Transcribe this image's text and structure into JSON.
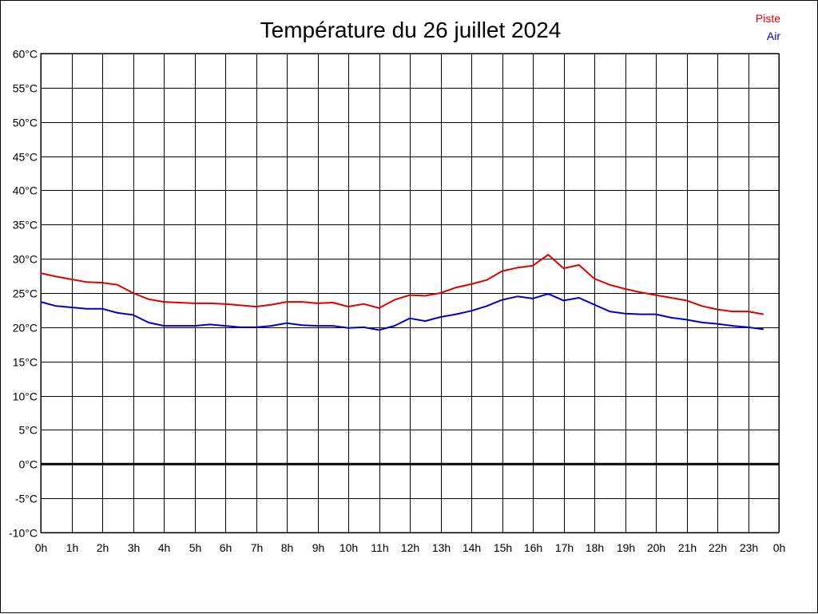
{
  "chart_data": {
    "type": "line",
    "title": "Température du 26 juillet 2024",
    "xlabel": "",
    "ylabel": "",
    "x_tick_labels": [
      "0h",
      "1h",
      "2h",
      "3h",
      "4h",
      "5h",
      "6h",
      "7h",
      "8h",
      "9h",
      "10h",
      "11h",
      "12h",
      "13h",
      "14h",
      "15h",
      "16h",
      "17h",
      "18h",
      "19h",
      "20h",
      "21h",
      "22h",
      "23h",
      "0h"
    ],
    "y_tick_labels": [
      "60°C",
      "55°C",
      "50°C",
      "45°C",
      "40°C",
      "35°C",
      "30°C",
      "25°C",
      "20°C",
      "15°C",
      "10°C",
      "5°C",
      "0°C",
      "-5°C",
      "-10°C"
    ],
    "xlim": [
      0,
      24
    ],
    "ylim": [
      -10,
      60
    ],
    "grid": true,
    "legend_position": "top-right",
    "zero_line": 0,
    "series": [
      {
        "name": "Piste",
        "color": "#dd0000",
        "x": [
          0,
          0.5,
          1,
          1.5,
          2,
          2.5,
          3,
          3.5,
          4,
          4.5,
          5,
          5.5,
          6,
          6.5,
          7,
          7.5,
          8,
          8.5,
          9,
          9.5,
          10,
          10.5,
          11,
          11.5,
          12,
          12.5,
          13,
          13.5,
          14,
          14.5,
          15,
          15.5,
          16,
          16.5,
          17,
          17.5,
          18,
          18.5,
          19,
          19.5,
          20,
          20.5,
          21,
          21.5,
          22,
          22.5,
          23,
          23.5
        ],
        "values": [
          27.9,
          27.4,
          27.0,
          26.6,
          26.5,
          26.2,
          25.0,
          24.1,
          23.7,
          23.6,
          23.5,
          23.5,
          23.4,
          23.2,
          23.0,
          23.3,
          23.7,
          23.7,
          23.5,
          23.6,
          23.0,
          23.4,
          22.8,
          24.0,
          24.7,
          24.6,
          25.0,
          25.8,
          26.3,
          26.9,
          28.2,
          28.7,
          29.0,
          30.6,
          28.6,
          29.1,
          27.1,
          26.2,
          25.6,
          25.1,
          24.7,
          24.3,
          23.9,
          23.1,
          22.6,
          22.3,
          22.3,
          21.9
        ]
      },
      {
        "name": "Air",
        "color": "#0000cc",
        "x": [
          0,
          0.5,
          1,
          1.5,
          2,
          2.5,
          3,
          3.5,
          4,
          4.5,
          5,
          5.5,
          6,
          6.5,
          7,
          7.5,
          8,
          8.5,
          9,
          9.5,
          10,
          10.5,
          11,
          11.5,
          12,
          12.5,
          13,
          13.5,
          14,
          14.5,
          15,
          15.5,
          16,
          16.5,
          17,
          17.5,
          18,
          18.5,
          19,
          19.5,
          20,
          20.5,
          21,
          21.5,
          22,
          22.5,
          23,
          23.5
        ],
        "values": [
          23.7,
          23.1,
          22.9,
          22.7,
          22.7,
          22.1,
          21.8,
          20.7,
          20.2,
          20.2,
          20.2,
          20.4,
          20.2,
          20.0,
          20.0,
          20.2,
          20.6,
          20.3,
          20.2,
          20.2,
          19.9,
          20.0,
          19.6,
          20.2,
          21.3,
          20.9,
          21.5,
          21.9,
          22.4,
          23.1,
          24.0,
          24.5,
          24.2,
          24.9,
          23.9,
          24.3,
          23.3,
          22.3,
          22.0,
          21.9,
          21.9,
          21.4,
          21.1,
          20.7,
          20.5,
          20.2,
          20.0,
          19.7
        ]
      }
    ]
  }
}
